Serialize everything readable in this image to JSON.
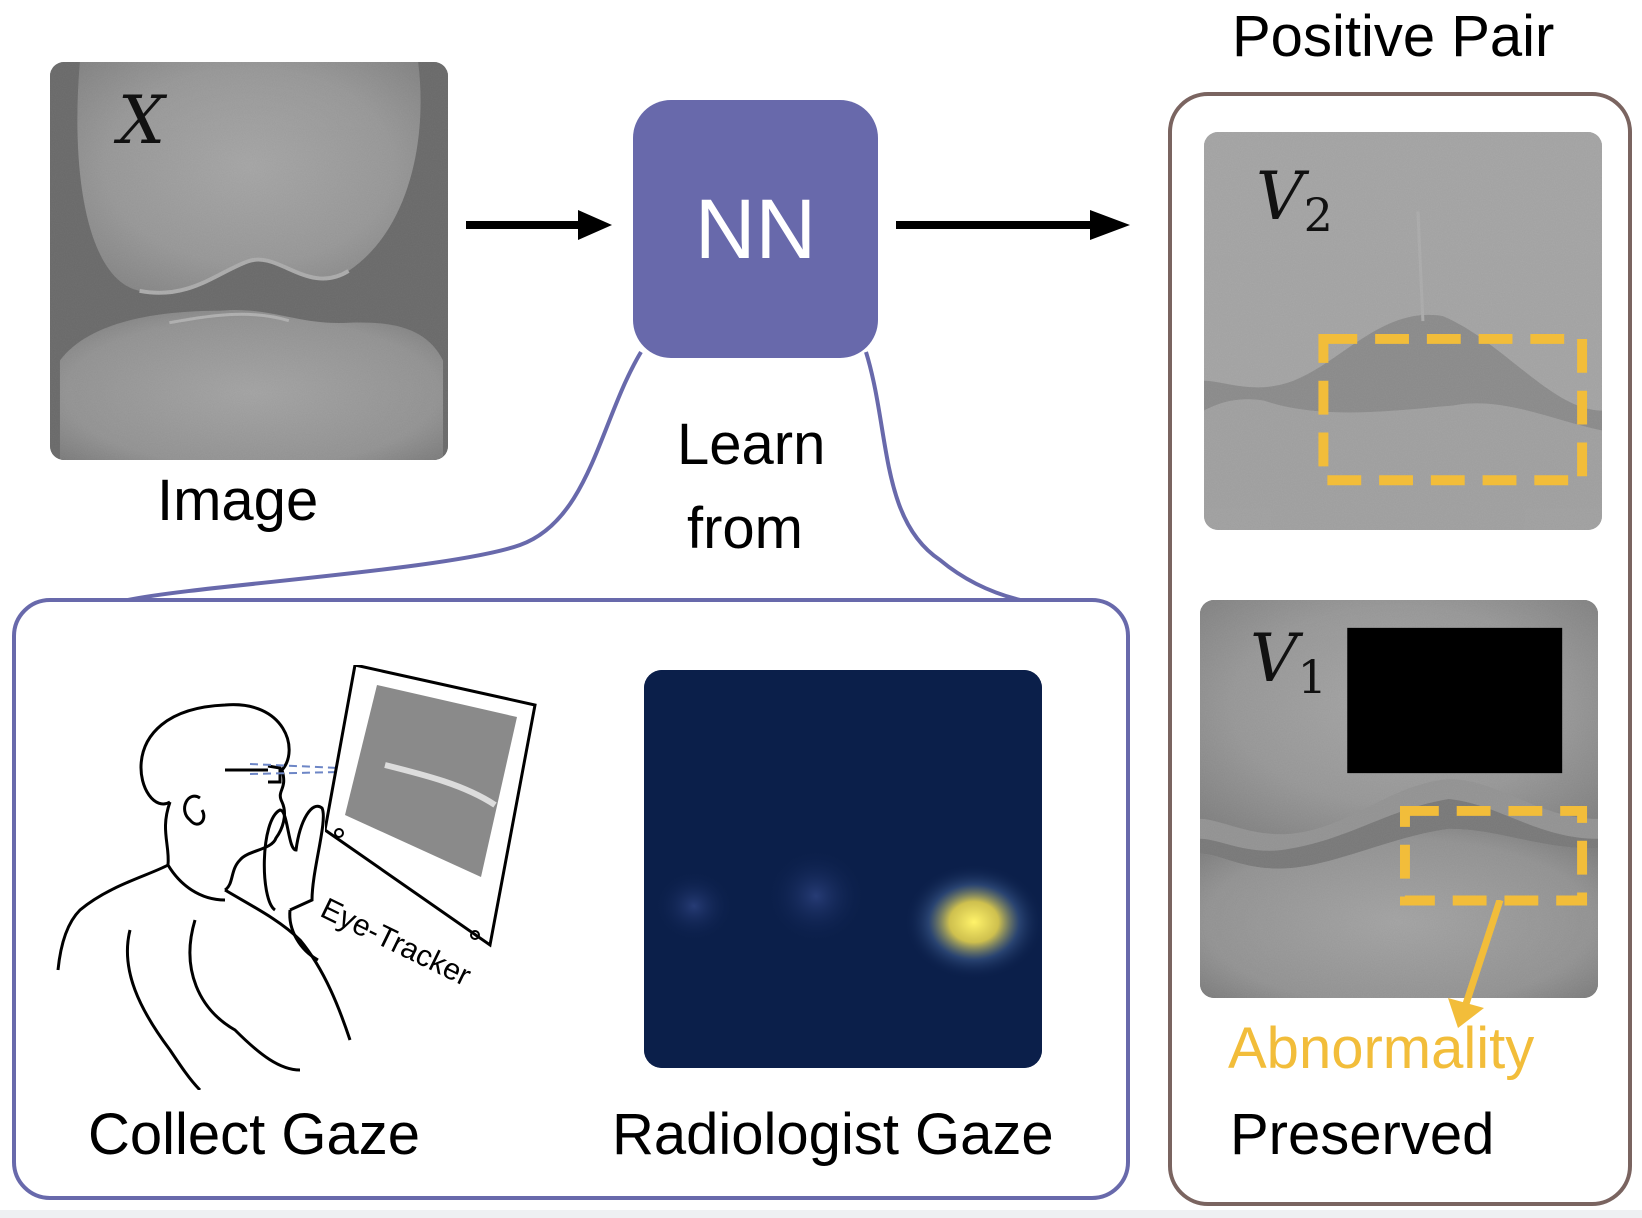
{
  "colors": {
    "nn_fill": "#6869ab",
    "learn_outline": "#6869ab",
    "pair_outline": "#7a6460",
    "abnormality": "#f2bd3a",
    "arrow": "#000000",
    "heatmap_bg": "#0b1f4a",
    "heatmap_peak": "#f6ef5a"
  },
  "input": {
    "symbol": "X",
    "caption": "Image"
  },
  "model": {
    "label": "NN",
    "learn_caption_line1": "Learn",
    "learn_caption_line2": "from"
  },
  "gaze_panel": {
    "collect_caption": "Collect Gaze",
    "tracker_label": "Eye-Tracker",
    "heatmap_caption": "Radiologist Gaze"
  },
  "pair_panel": {
    "title": "Positive Pair",
    "view2_symbol": "V",
    "view2_sub": "2",
    "view1_symbol": "V",
    "view1_sub": "1",
    "abnormality_label": "Abnormality",
    "preserved_label": "Preserved"
  },
  "icons": [
    "arrow-right-icon",
    "radiologist-icon",
    "eye-tracker-monitor-icon",
    "gaze-heatmap"
  ]
}
